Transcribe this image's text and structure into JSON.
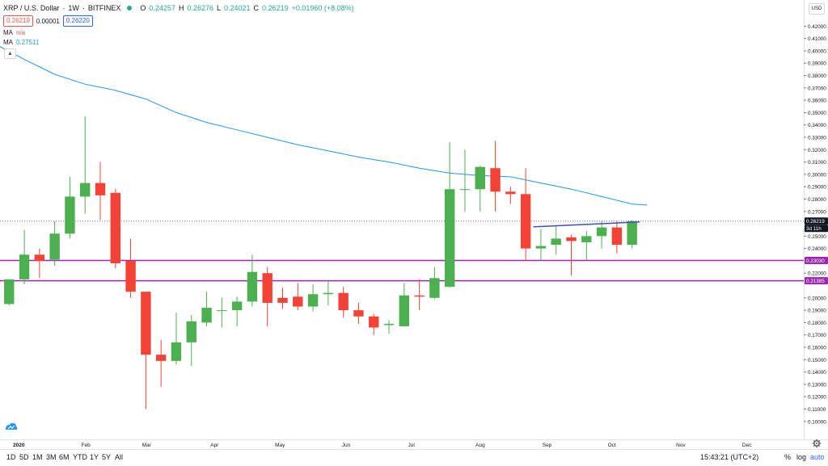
{
  "symbol": {
    "name": "XRP / U.S. Dollar",
    "interval": "1W",
    "exchange": "BITFINEX",
    "open_label": "O",
    "open": "0.24257",
    "high_label": "H",
    "high": "0.26276",
    "low_label": "L",
    "low": "0.24021",
    "close_label": "C",
    "close": "0.26219",
    "change": "+0.01960 (+8.08%)",
    "sep": "·"
  },
  "quote": {
    "bid": "0.26219",
    "spread": "0.00001",
    "ask": "0.26220"
  },
  "indicators": [
    {
      "label": "MA",
      "value": "n/a"
    },
    {
      "label": "MA",
      "value": "0.27511"
    }
  ],
  "currency": "USD",
  "price_tags": {
    "last": "0.26219",
    "countdown": "3d 11h",
    "line1": "0.23030",
    "line2": "0.21385"
  },
  "horizontal_lines": [
    0.2303,
    0.21385
  ],
  "trend_line": {
    "from": {
      "x": 34.5,
      "y": 0.2575
    },
    "to": {
      "x": 41.5,
      "y": 0.2615
    }
  },
  "y_ticks": [
    "0.42000",
    "0.41000",
    "0.40000",
    "0.39000",
    "0.38000",
    "0.37000",
    "0.36000",
    "0.35000",
    "0.34000",
    "0.33000",
    "0.32000",
    "0.31000",
    "0.30000",
    "0.29000",
    "0.28000",
    "0.27000",
    "0.25000",
    "0.24000",
    "0.22000",
    "0.20000",
    "0.19000",
    "0.18000",
    "0.17000",
    "0.16000",
    "0.15000",
    "0.14000",
    "0.13000",
    "0.12000",
    "0.11000",
    "0.10000"
  ],
  "x_ticks": [
    {
      "label": "2020",
      "x": 0.25
    },
    {
      "label": "Feb",
      "x": 4.75
    },
    {
      "label": "Mar",
      "x": 8.75
    },
    {
      "label": "Apr",
      "x": 13.25
    },
    {
      "label": "May",
      "x": 17.5
    },
    {
      "label": "Jun",
      "x": 21.9
    },
    {
      "label": "Jul",
      "x": 26.25
    },
    {
      "label": "Aug",
      "x": 30.7
    },
    {
      "label": "Sep",
      "x": 35.1
    },
    {
      "label": "Oct",
      "x": 39.4
    },
    {
      "label": "Nov",
      "x": 43.9
    },
    {
      "label": "Dec",
      "x": 48.25
    }
  ],
  "chart_data": {
    "type": "candlestick",
    "x_unit": "weeks from 2020-01-06",
    "ylim": [
      0.092,
      0.432
    ],
    "xlim": [
      -0.6,
      52.3
    ],
    "up_color": "#4caf50",
    "down_color": "#f44336",
    "candles": [
      {
        "x": -1,
        "o": 0.196,
        "h": 0.199,
        "l": 0.193,
        "c": 0.194
      },
      {
        "x": 0,
        "o": 0.195,
        "h": 0.215,
        "l": 0.194,
        "c": 0.215
      },
      {
        "x": 1,
        "o": 0.215,
        "h": 0.255,
        "l": 0.211,
        "c": 0.235
      },
      {
        "x": 2,
        "o": 0.235,
        "h": 0.24,
        "l": 0.216,
        "c": 0.23
      },
      {
        "x": 3,
        "o": 0.231,
        "h": 0.262,
        "l": 0.226,
        "c": 0.252
      },
      {
        "x": 4,
        "o": 0.252,
        "h": 0.298,
        "l": 0.248,
        "c": 0.282
      },
      {
        "x": 5,
        "o": 0.282,
        "h": 0.347,
        "l": 0.268,
        "c": 0.293
      },
      {
        "x": 6,
        "o": 0.293,
        "h": 0.31,
        "l": 0.263,
        "c": 0.283
      },
      {
        "x": 7,
        "o": 0.285,
        "h": 0.288,
        "l": 0.224,
        "c": 0.228
      },
      {
        "x": 8,
        "o": 0.23,
        "h": 0.248,
        "l": 0.2,
        "c": 0.205
      },
      {
        "x": 9,
        "o": 0.205,
        "h": 0.205,
        "l": 0.11,
        "c": 0.154
      },
      {
        "x": 10,
        "o": 0.154,
        "h": 0.166,
        "l": 0.128,
        "c": 0.149
      },
      {
        "x": 11,
        "o": 0.149,
        "h": 0.188,
        "l": 0.146,
        "c": 0.164
      },
      {
        "x": 12,
        "o": 0.164,
        "h": 0.186,
        "l": 0.145,
        "c": 0.181
      },
      {
        "x": 13,
        "o": 0.18,
        "h": 0.205,
        "l": 0.177,
        "c": 0.192
      },
      {
        "x": 14,
        "o": 0.19,
        "h": 0.2,
        "l": 0.176,
        "c": 0.19
      },
      {
        "x": 15,
        "o": 0.19,
        "h": 0.201,
        "l": 0.177,
        "c": 0.197
      },
      {
        "x": 16,
        "o": 0.197,
        "h": 0.235,
        "l": 0.193,
        "c": 0.221
      },
      {
        "x": 17,
        "o": 0.22,
        "h": 0.225,
        "l": 0.177,
        "c": 0.196
      },
      {
        "x": 18,
        "o": 0.2,
        "h": 0.208,
        "l": 0.191,
        "c": 0.196
      },
      {
        "x": 19,
        "o": 0.201,
        "h": 0.212,
        "l": 0.19,
        "c": 0.193
      },
      {
        "x": 20,
        "o": 0.193,
        "h": 0.211,
        "l": 0.189,
        "c": 0.203
      },
      {
        "x": 21,
        "o": 0.203,
        "h": 0.214,
        "l": 0.194,
        "c": 0.204
      },
      {
        "x": 22,
        "o": 0.204,
        "h": 0.209,
        "l": 0.184,
        "c": 0.19
      },
      {
        "x": 23,
        "o": 0.19,
        "h": 0.196,
        "l": 0.179,
        "c": 0.185
      },
      {
        "x": 24,
        "o": 0.185,
        "h": 0.187,
        "l": 0.17,
        "c": 0.176
      },
      {
        "x": 25,
        "o": 0.178,
        "h": 0.182,
        "l": 0.171,
        "c": 0.179
      },
      {
        "x": 26,
        "o": 0.177,
        "h": 0.212,
        "l": 0.177,
        "c": 0.202
      },
      {
        "x": 27,
        "o": 0.202,
        "h": 0.215,
        "l": 0.19,
        "c": 0.201
      },
      {
        "x": 28,
        "o": 0.2,
        "h": 0.225,
        "l": 0.199,
        "c": 0.216
      },
      {
        "x": 29,
        "o": 0.209,
        "h": 0.326,
        "l": 0.208,
        "c": 0.288
      },
      {
        "x": 30,
        "o": 0.288,
        "h": 0.32,
        "l": 0.27,
        "c": 0.288
      },
      {
        "x": 31,
        "o": 0.288,
        "h": 0.307,
        "l": 0.27,
        "c": 0.306
      },
      {
        "x": 32,
        "o": 0.305,
        "h": 0.327,
        "l": 0.27,
        "c": 0.286
      },
      {
        "x": 33,
        "o": 0.286,
        "h": 0.29,
        "l": 0.276,
        "c": 0.284
      },
      {
        "x": 34,
        "o": 0.284,
        "h": 0.305,
        "l": 0.23,
        "c": 0.24
      },
      {
        "x": 35,
        "o": 0.24,
        "h": 0.256,
        "l": 0.23,
        "c": 0.242
      },
      {
        "x": 36,
        "o": 0.243,
        "h": 0.258,
        "l": 0.235,
        "c": 0.248
      },
      {
        "x": 37,
        "o": 0.249,
        "h": 0.251,
        "l": 0.218,
        "c": 0.246
      },
      {
        "x": 38,
        "o": 0.245,
        "h": 0.254,
        "l": 0.23,
        "c": 0.25
      },
      {
        "x": 39,
        "o": 0.25,
        "h": 0.262,
        "l": 0.24,
        "c": 0.257
      },
      {
        "x": 40,
        "o": 0.257,
        "h": 0.262,
        "l": 0.236,
        "c": 0.243
      },
      {
        "x": 41,
        "o": 0.243,
        "h": 0.263,
        "l": 0.24,
        "c": 0.262
      }
    ],
    "ma_line": [
      {
        "x": -1,
        "y": 0.406
      },
      {
        "x": 1,
        "y": 0.393
      },
      {
        "x": 3,
        "y": 0.381
      },
      {
        "x": 5,
        "y": 0.373
      },
      {
        "x": 7,
        "y": 0.368
      },
      {
        "x": 9,
        "y": 0.361
      },
      {
        "x": 11,
        "y": 0.35
      },
      {
        "x": 13,
        "y": 0.342
      },
      {
        "x": 15,
        "y": 0.336
      },
      {
        "x": 17,
        "y": 0.33
      },
      {
        "x": 19,
        "y": 0.324
      },
      {
        "x": 21,
        "y": 0.319
      },
      {
        "x": 23,
        "y": 0.314
      },
      {
        "x": 25,
        "y": 0.31
      },
      {
        "x": 27,
        "y": 0.305
      },
      {
        "x": 29,
        "y": 0.301
      },
      {
        "x": 31,
        "y": 0.299
      },
      {
        "x": 33,
        "y": 0.298
      },
      {
        "x": 35,
        "y": 0.293
      },
      {
        "x": 37,
        "y": 0.288
      },
      {
        "x": 39,
        "y": 0.282
      },
      {
        "x": 41,
        "y": 0.276
      },
      {
        "x": 42,
        "y": 0.2751
      }
    ]
  },
  "range_buttons": [
    "1D",
    "5D",
    "1M",
    "3M",
    "6M",
    "YTD",
    "1Y",
    "5Y",
    "All"
  ],
  "clock": "15:43:21 (UTC+2)",
  "bottom_right": {
    "percent": "%",
    "log": "log",
    "auto": "auto"
  },
  "colors": {
    "up": "#4caf50",
    "down": "#f44336",
    "ma": "#2196f3",
    "hline": "#9c27b0",
    "trend": "#3f51b5",
    "last_price_tag": "#131722"
  }
}
